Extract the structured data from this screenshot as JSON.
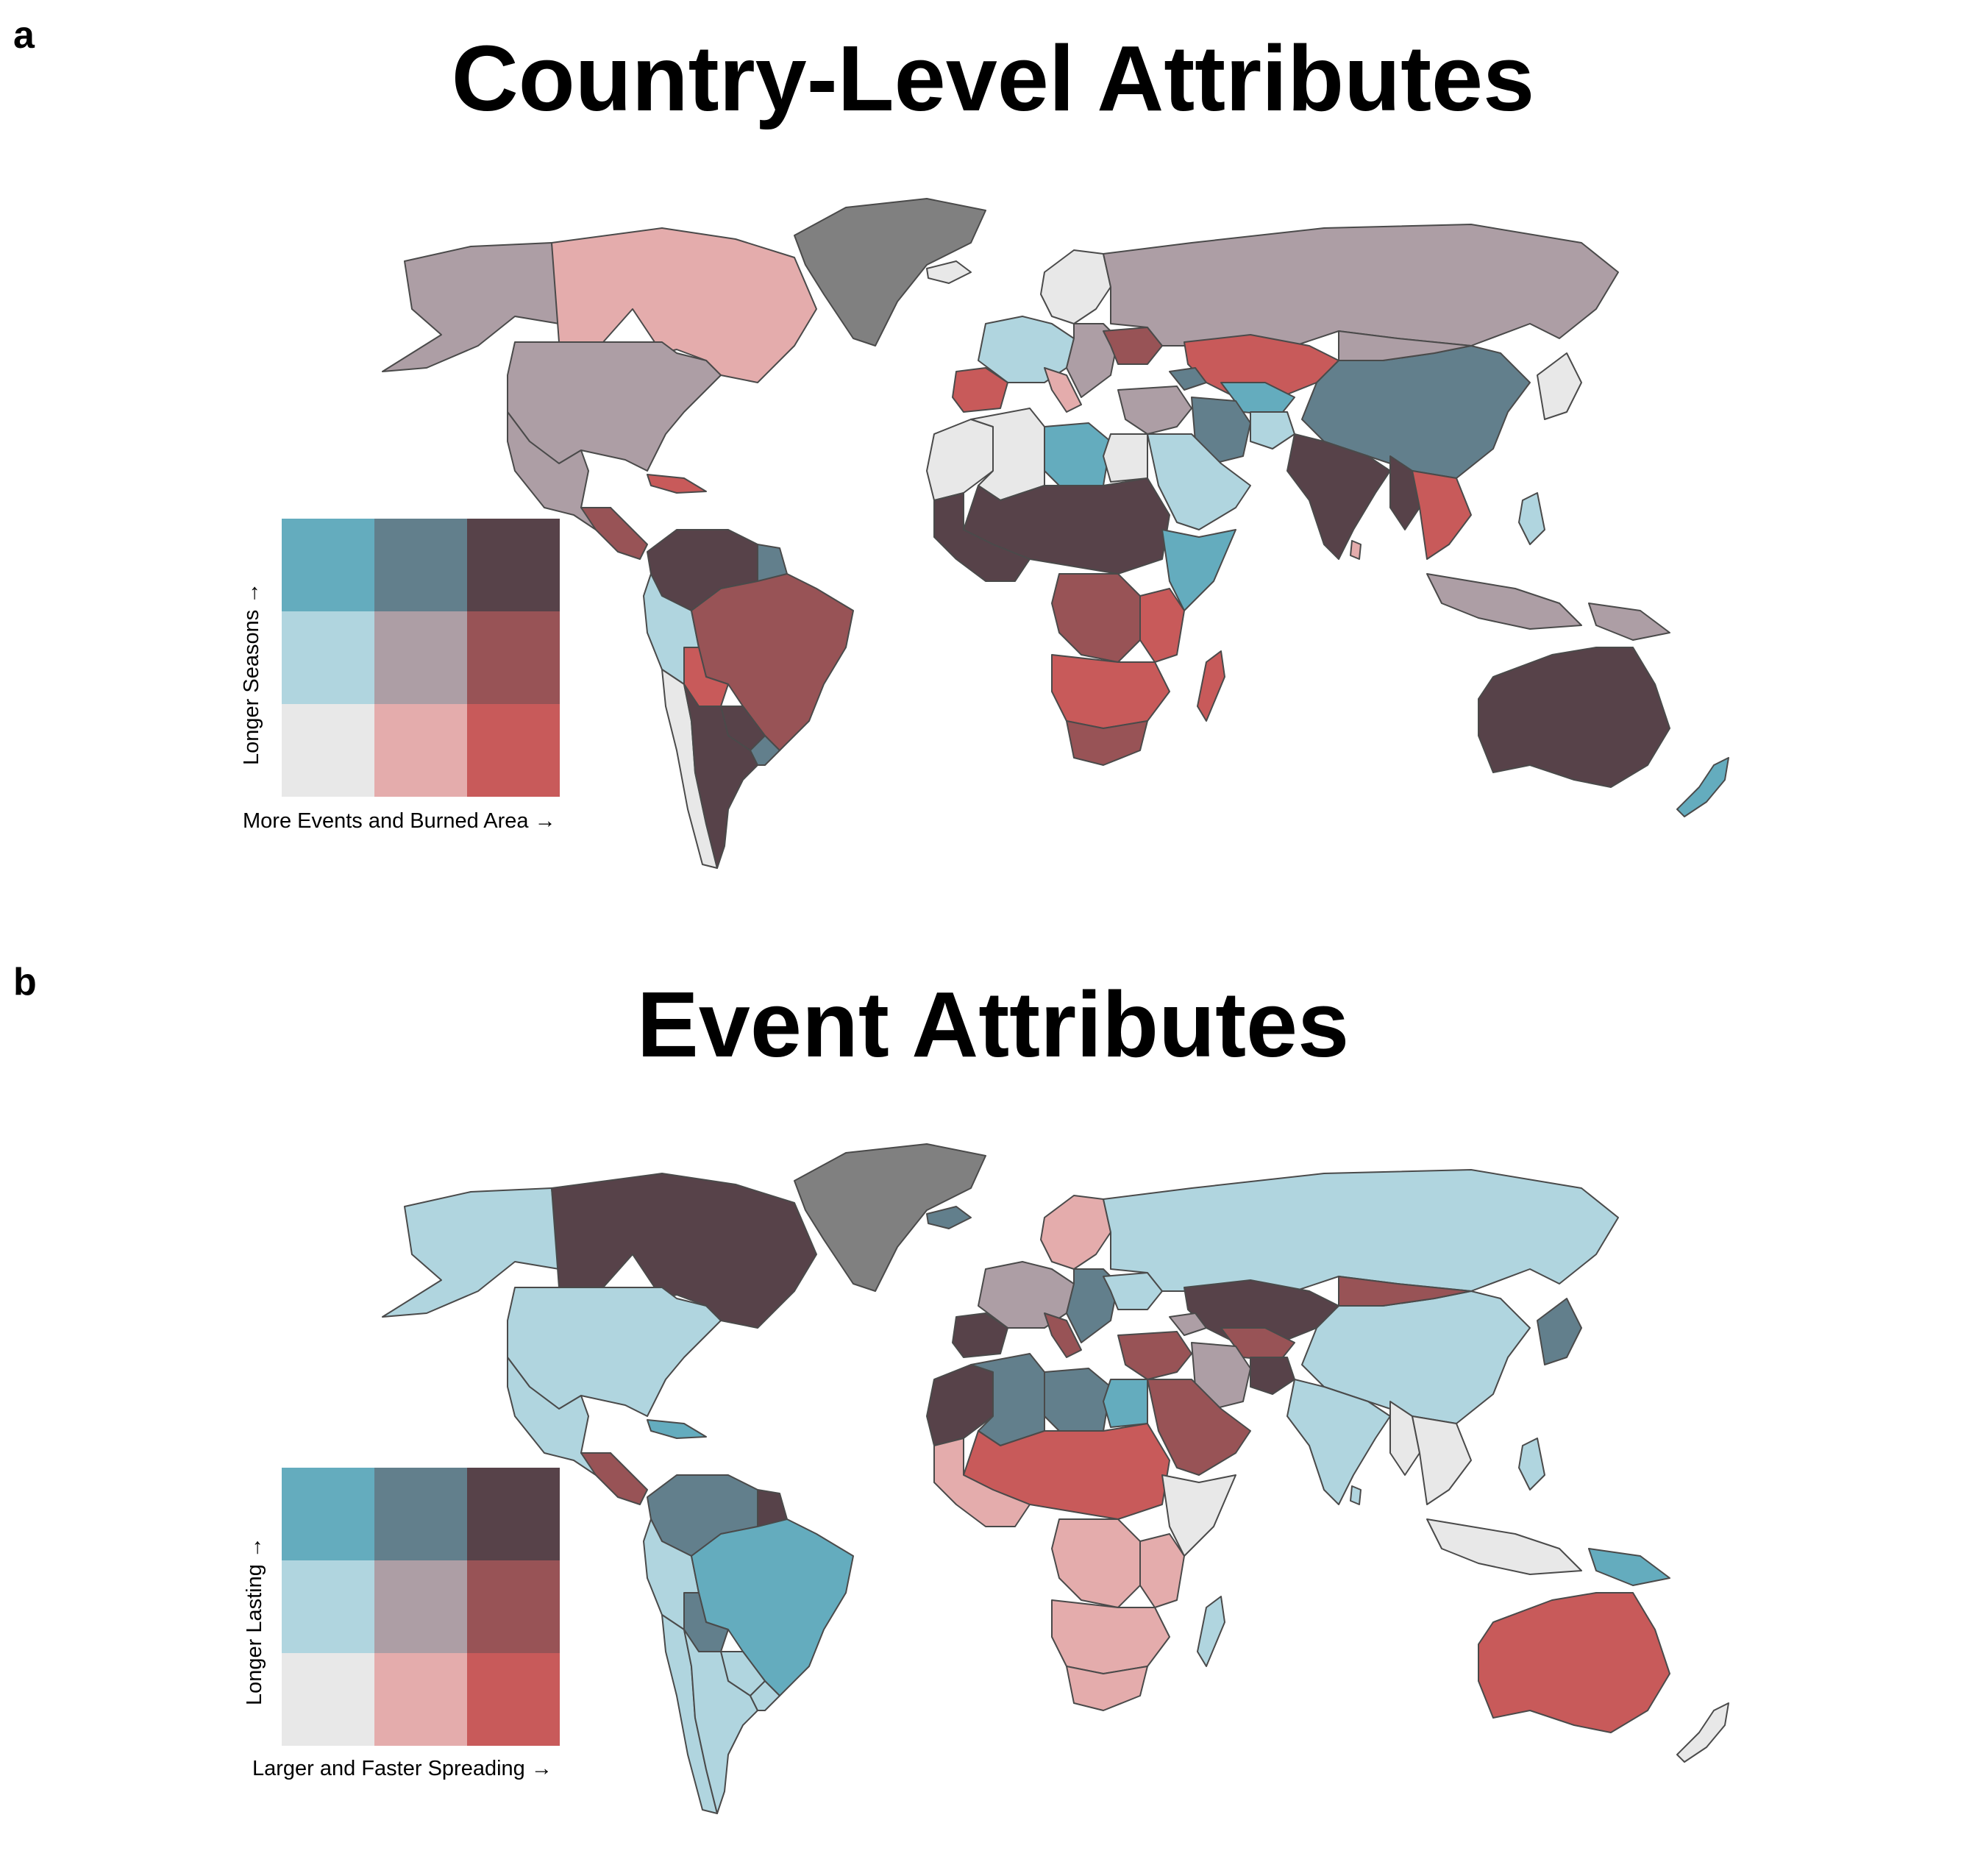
{
  "colors": {
    "c00": "#e8e8e8",
    "c10": "#e4acac",
    "c20": "#c85a5a",
    "c01": "#b0d5df",
    "c11": "#ad9ea5",
    "c21": "#985356",
    "c02": "#64acbe",
    "c12": "#627f8c",
    "c22": "#574249",
    "greenland": "#808080"
  },
  "panel_a": {
    "letter": "a",
    "title": "Country-Level Attributes",
    "legend": {
      "x_label": "More Events and Burned Area →",
      "y_label": "Longer Seasons →"
    },
    "fills": {
      "canada": "c10",
      "usa": "c11",
      "alaska": "c11",
      "mexico": "c11",
      "central_america": "c21",
      "caribbean": "c20",
      "colombia_venezuela": "c22",
      "guianas": "c12",
      "peru_ecuador": "c01",
      "chile": "c00",
      "brazil": "c21",
      "bolivia": "c20",
      "paraguay": "c22",
      "argentina": "c22",
      "uruguay": "c12",
      "iceland": "c00",
      "scandinavia": "c00",
      "west_europe": "c01",
      "iberia": "c20",
      "italy": "c10",
      "east_europe": "c11",
      "ukraine": "c21",
      "russia": "c11",
      "kazakhstan": "c20",
      "central_asia": "c02",
      "caucasus": "c12",
      "iran": "c12",
      "afghanistan": "c01",
      "arabia": "c01",
      "turkey_middle_east": "c11",
      "north_africa_west": "c00",
      "algeria": "c00",
      "libya": "c02",
      "egypt": "c00",
      "sahel": "c22",
      "west_africa": "c22",
      "horn_africa": "c02",
      "central_africa": "c21",
      "east_africa": "c20",
      "southern_africa": "c20",
      "madagascar": "c20",
      "south_africa": "c21",
      "china": "c12",
      "mongolia": "c11",
      "korea_japan": "c00",
      "india": "c22",
      "southeast_asia": "c20",
      "myanmar": "c22",
      "indonesia": "c11",
      "philippines": "c01",
      "png": "c11",
      "australia": "c22",
      "new_zealand": "c02",
      "sri_lanka": "c10"
    }
  },
  "panel_b": {
    "letter": "b",
    "title": "Event Attributes",
    "legend": {
      "x_label": "Larger and Faster Spreading →",
      "y_label": "Longer Lasting →"
    },
    "fills": {
      "canada": "c22",
      "usa": "c01",
      "alaska": "c01",
      "mexico": "c01",
      "central_america": "c21",
      "caribbean": "c02",
      "colombia_venezuela": "c12",
      "guianas": "c22",
      "peru_ecuador": "c01",
      "chile": "c01",
      "brazil": "c02",
      "bolivia": "c12",
      "paraguay": "c01",
      "argentina": "c01",
      "uruguay": "c01",
      "iceland": "c12",
      "scandinavia": "c10",
      "west_europe": "c11",
      "iberia": "c22",
      "italy": "c21",
      "east_europe": "c12",
      "ukraine": "c01",
      "russia": "c01",
      "kazakhstan": "c22",
      "central_asia": "c21",
      "caucasus": "c11",
      "iran": "c11",
      "afghanistan": "c22",
      "arabia": "c21",
      "turkey_middle_east": "c21",
      "north_africa_west": "c22",
      "algeria": "c12",
      "libya": "c12",
      "egypt": "c02",
      "sahel": "c20",
      "west_africa": "c10",
      "horn_africa": "c00",
      "central_africa": "c10",
      "east_africa": "c10",
      "southern_africa": "c10",
      "madagascar": "c01",
      "south_africa": "c10",
      "china": "c01",
      "mongolia": "c21",
      "korea_japan": "c12",
      "india": "c01",
      "southeast_asia": "c00",
      "myanmar": "c00",
      "indonesia": "c00",
      "philippines": "c01",
      "png": "c02",
      "australia": "c20",
      "new_zealand": "c00",
      "sri_lanka": "c01"
    }
  }
}
